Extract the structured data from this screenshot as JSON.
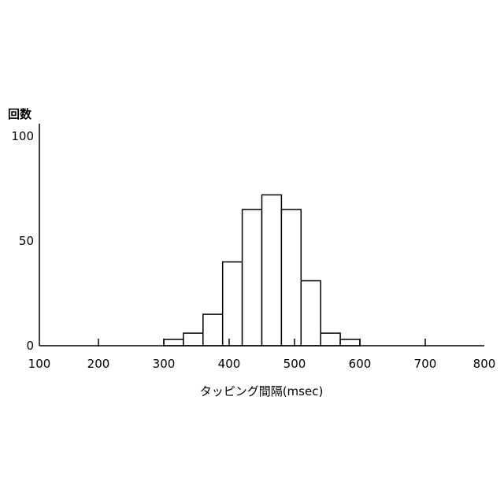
{
  "chart_data": {
    "type": "bar",
    "title": "",
    "xlabel": "タッピング間隔(msec)",
    "ylabel": "回数",
    "xlim": [
      100,
      800
    ],
    "ylim": [
      0,
      100
    ],
    "x_ticks": [
      100,
      200,
      300,
      400,
      500,
      600,
      700,
      800
    ],
    "y_ticks": [
      0,
      50,
      100
    ],
    "bin_width": 30,
    "bins": [
      {
        "start": 300,
        "end": 330,
        "value": 3
      },
      {
        "start": 330,
        "end": 360,
        "value": 6
      },
      {
        "start": 360,
        "end": 390,
        "value": 15
      },
      {
        "start": 390,
        "end": 420,
        "value": 40
      },
      {
        "start": 420,
        "end": 450,
        "value": 65
      },
      {
        "start": 450,
        "end": 480,
        "value": 72
      },
      {
        "start": 480,
        "end": 510,
        "value": 65
      },
      {
        "start": 510,
        "end": 540,
        "value": 31
      },
      {
        "start": 540,
        "end": 570,
        "value": 6
      },
      {
        "start": 570,
        "end": 600,
        "value": 3
      }
    ],
    "grid": false,
    "bar_fill": "#ffffff",
    "bar_stroke": "#000000"
  }
}
